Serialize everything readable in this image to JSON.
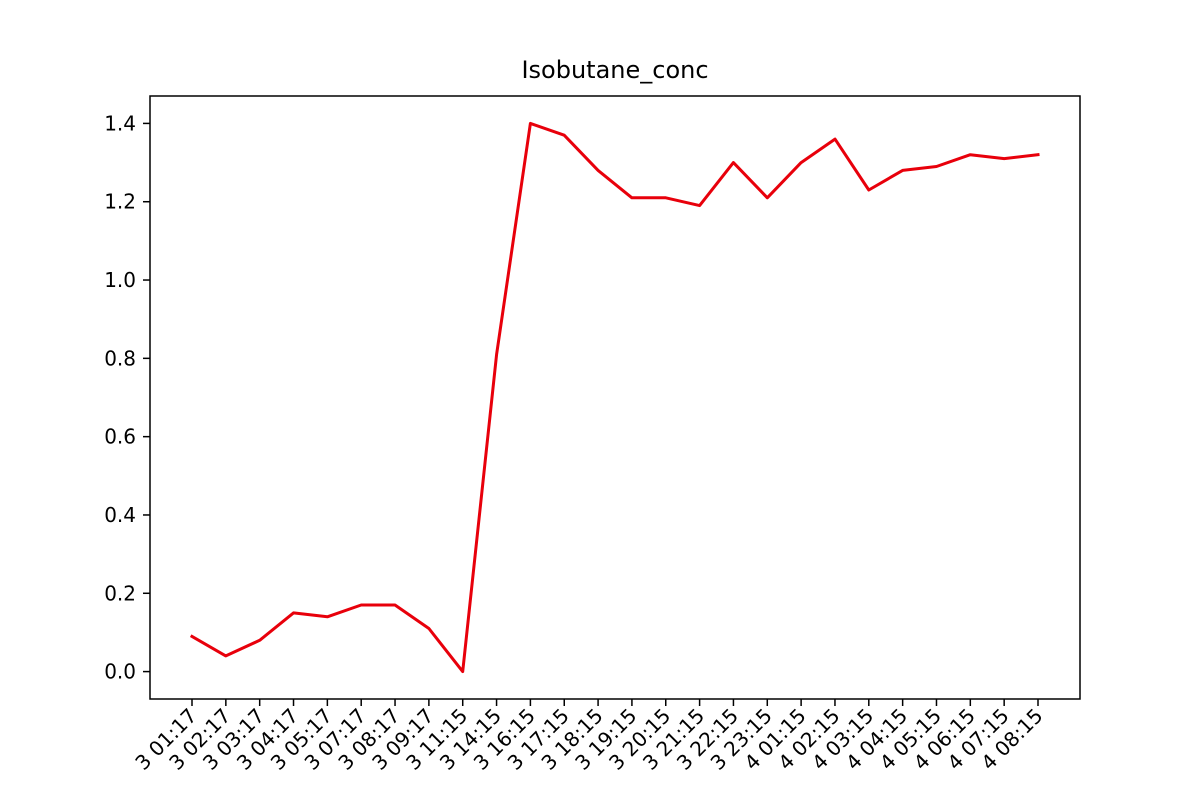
{
  "chart_data": {
    "type": "line",
    "title": "Isobutane_conc",
    "xlabel": "",
    "ylabel": "",
    "x_tick_labels": [
      "3 01:17",
      "3 02:17",
      "3 03:17",
      "3 04:17",
      "3 05:17",
      "3 07:17",
      "3 08:17",
      "3 09:17",
      "3 11:15",
      "3 14:15",
      "3 16:15",
      "3 17:15",
      "3 18:15",
      "3 19:15",
      "3 20:15",
      "3 21:15",
      "3 22:15",
      "3 23:15",
      "4 01:15",
      "4 02:15",
      "4 03:15",
      "4 04:15",
      "4 05:15",
      "4 06:15",
      "4 07:15",
      "4 08:15"
    ],
    "y_ticks": [
      "0.0",
      "0.2",
      "0.4",
      "0.6",
      "0.8",
      "1.0",
      "1.2",
      "1.4"
    ],
    "ylim": [
      -0.07,
      1.47
    ],
    "series": [
      {
        "color": "#e8000b",
        "values": [
          0.09,
          0.04,
          0.08,
          0.15,
          0.14,
          0.17,
          0.17,
          0.11,
          0.0,
          0.81,
          1.4,
          1.37,
          1.28,
          1.21,
          1.21,
          1.19,
          1.3,
          1.21,
          1.3,
          1.36,
          1.23,
          1.28,
          1.29,
          1.32,
          1.31,
          1.32
        ]
      }
    ],
    "grid": false,
    "legend": "none"
  }
}
